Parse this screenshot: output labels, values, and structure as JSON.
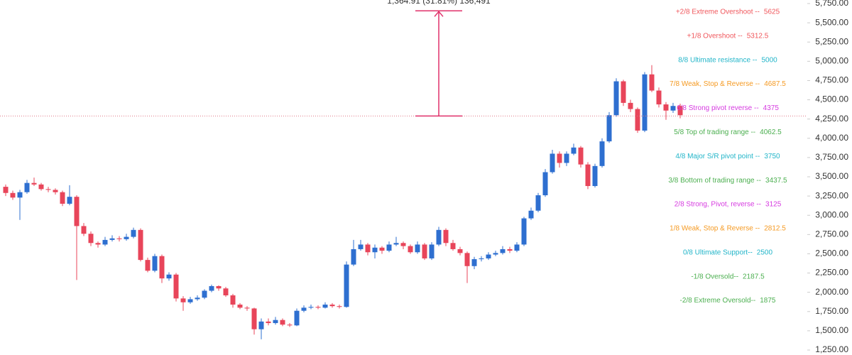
{
  "chart_data": {
    "type": "candlestick",
    "up_color": "#2e6fd0",
    "down_color": "#e8455a",
    "ylim": [
      1250,
      5750
    ],
    "yticks": [
      {
        "value": 1250,
        "label": "1,250.00"
      },
      {
        "value": 1500,
        "label": "1,500.00"
      },
      {
        "value": 1750,
        "label": "1,750.00"
      },
      {
        "value": 2000,
        "label": "2,000.00"
      },
      {
        "value": 2250,
        "label": "2,250.00"
      },
      {
        "value": 2500,
        "label": "2,500.00"
      },
      {
        "value": 2750,
        "label": "2,750.00"
      },
      {
        "value": 3000,
        "label": "3,000.00"
      },
      {
        "value": 3250,
        "label": "3,250.00"
      },
      {
        "value": 3500,
        "label": "3,500.00"
      },
      {
        "value": 3750,
        "label": "3,750.00"
      },
      {
        "value": 4000,
        "label": "4,000.00"
      },
      {
        "value": 4250,
        "label": "4,250.00"
      },
      {
        "value": 4500,
        "label": "4,500.00"
      },
      {
        "value": 4750,
        "label": "4,750.00"
      },
      {
        "value": 5000,
        "label": "5,000.00"
      },
      {
        "value": 5250,
        "label": "5,250.00"
      },
      {
        "value": 5500,
        "label": "5,500.00"
      },
      {
        "value": 5750,
        "label": "5,750.00"
      }
    ],
    "candles": [
      [
        3370,
        3400,
        3250,
        3290
      ],
      [
        3290,
        3320,
        3200,
        3230
      ],
      [
        3230,
        3330,
        2940,
        3300
      ],
      [
        3300,
        3460,
        3280,
        3420
      ],
      [
        3420,
        3490,
        3380,
        3400
      ],
      [
        3400,
        3420,
        3320,
        3340
      ],
      [
        3340,
        3370,
        3300,
        3330
      ],
      [
        3330,
        3350,
        3270,
        3300
      ],
      [
        3300,
        3320,
        3120,
        3150
      ],
      [
        3150,
        3390,
        3130,
        3240
      ],
      [
        3240,
        3260,
        2160,
        2860
      ],
      [
        2860,
        2900,
        2730,
        2760
      ],
      [
        2760,
        2790,
        2600,
        2640
      ],
      [
        2640,
        2660,
        2580,
        2620
      ],
      [
        2620,
        2720,
        2600,
        2680
      ],
      [
        2680,
        2740,
        2660,
        2700
      ],
      [
        2700,
        2730,
        2660,
        2690
      ],
      [
        2690,
        2760,
        2670,
        2720
      ],
      [
        2720,
        2840,
        2700,
        2810
      ],
      [
        2810,
        2830,
        2400,
        2420
      ],
      [
        2420,
        2450,
        2260,
        2280
      ],
      [
        2280,
        2500,
        2260,
        2470
      ],
      [
        2470,
        2490,
        2120,
        2180
      ],
      [
        2180,
        2260,
        2150,
        2230
      ],
      [
        2230,
        2250,
        1880,
        1920
      ],
      [
        1920,
        1950,
        1760,
        1870
      ],
      [
        1870,
        1940,
        1850,
        1910
      ],
      [
        1910,
        1960,
        1890,
        1930
      ],
      [
        1930,
        2040,
        1910,
        2020
      ],
      [
        2020,
        2100,
        2000,
        2080
      ],
      [
        2080,
        2090,
        2020,
        2050
      ],
      [
        2050,
        2070,
        1940,
        1960
      ],
      [
        1960,
        1980,
        1800,
        1840
      ],
      [
        1840,
        1860,
        1780,
        1800
      ],
      [
        1800,
        1820,
        1760,
        1790
      ],
      [
        1790,
        1800,
        1450,
        1520
      ],
      [
        1520,
        1660,
        1390,
        1620
      ],
      [
        1620,
        1660,
        1570,
        1600
      ],
      [
        1600,
        1680,
        1580,
        1640
      ],
      [
        1640,
        1660,
        1560,
        1580
      ],
      [
        1580,
        1600,
        1550,
        1570
      ],
      [
        1570,
        1790,
        1560,
        1760
      ],
      [
        1760,
        1830,
        1740,
        1800
      ],
      [
        1800,
        1840,
        1780,
        1810
      ],
      [
        1810,
        1830,
        1780,
        1800
      ],
      [
        1800,
        1870,
        1790,
        1840
      ],
      [
        1840,
        1860,
        1800,
        1820
      ],
      [
        1820,
        1840,
        1790,
        1810
      ],
      [
        1810,
        2400,
        1800,
        2360
      ],
      [
        2360,
        2680,
        2340,
        2560
      ],
      [
        2560,
        2680,
        2540,
        2620
      ],
      [
        2620,
        2640,
        2480,
        2520
      ],
      [
        2520,
        2620,
        2440,
        2580
      ],
      [
        2580,
        2600,
        2500,
        2540
      ],
      [
        2540,
        2660,
        2520,
        2620
      ],
      [
        2620,
        2720,
        2600,
        2640
      ],
      [
        2640,
        2660,
        2560,
        2600
      ],
      [
        2600,
        2620,
        2500,
        2520
      ],
      [
        2520,
        2660,
        2500,
        2620
      ],
      [
        2620,
        2640,
        2420,
        2440
      ],
      [
        2440,
        2650,
        2420,
        2620
      ],
      [
        2620,
        2850,
        2600,
        2810
      ],
      [
        2810,
        2830,
        2600,
        2640
      ],
      [
        2640,
        2680,
        2540,
        2560
      ],
      [
        2560,
        2590,
        2480,
        2510
      ],
      [
        2510,
        2530,
        2120,
        2340
      ],
      [
        2340,
        2460,
        2300,
        2430
      ],
      [
        2430,
        2470,
        2400,
        2440
      ],
      [
        2440,
        2520,
        2420,
        2490
      ],
      [
        2490,
        2540,
        2470,
        2510
      ],
      [
        2510,
        2600,
        2490,
        2560
      ],
      [
        2560,
        2590,
        2510,
        2540
      ],
      [
        2540,
        2650,
        2520,
        2620
      ],
      [
        2620,
        2980,
        2600,
        2960
      ],
      [
        2960,
        3100,
        2940,
        3060
      ],
      [
        3060,
        3290,
        3040,
        3260
      ],
      [
        3260,
        3600,
        3240,
        3560
      ],
      [
        3560,
        3850,
        3540,
        3800
      ],
      [
        3800,
        3830,
        3620,
        3680
      ],
      [
        3680,
        3830,
        3640,
        3800
      ],
      [
        3800,
        3930,
        3780,
        3880
      ],
      [
        3880,
        3900,
        3620,
        3660
      ],
      [
        3660,
        3690,
        3340,
        3380
      ],
      [
        3380,
        3670,
        3360,
        3640
      ],
      [
        3640,
        4000,
        3620,
        3960
      ],
      [
        3960,
        4340,
        3940,
        4300
      ],
      [
        4300,
        4780,
        4280,
        4740
      ],
      [
        4740,
        4760,
        4420,
        4460
      ],
      [
        4460,
        4500,
        4340,
        4380
      ],
      [
        4380,
        4400,
        4070,
        4100
      ],
      [
        4100,
        4860,
        4080,
        4830
      ],
      [
        4830,
        4950,
        4600,
        4620
      ],
      [
        4620,
        4660,
        4400,
        4440
      ],
      [
        4440,
        4470,
        4240,
        4360
      ],
      [
        4360,
        4460,
        4330,
        4420
      ],
      [
        4420,
        4450,
        4260,
        4300
      ]
    ],
    "price_line": 4290,
    "price_line_color": "#e07a86",
    "measure": {
      "from": 4290,
      "to": 5655,
      "label": "1,364.91 (31.81%) 136,491",
      "color": "#e0306a"
    },
    "levels": [
      {
        "label": "+2/8 Extreme Overshoot --",
        "value": 5625,
        "color": "#f0575c"
      },
      {
        "label": "+1/8 Overshoot --",
        "value": 5312.5,
        "color": "#f0575c"
      },
      {
        "label": "8/8 Ultimate resistance --",
        "value": 5000,
        "color": "#22b5c9"
      },
      {
        "label": "7/8 Weak, Stop & Reverse --",
        "value": 4687.5,
        "color": "#f59a23"
      },
      {
        "label": "6/8 Strong pivot reverse --",
        "value": 4375,
        "color": "#d63ae0"
      },
      {
        "label": "5/8 Top of trading range --",
        "value": 4062.5,
        "color": "#4caf50"
      },
      {
        "label": "4/8 Major S/R pivot point --",
        "value": 3750,
        "color": "#22b5c9"
      },
      {
        "label": "3/8 Bottom of trading range --",
        "value": 3437.5,
        "color": "#4caf50"
      },
      {
        "label": "2/8 Strong, Pivot, reverse --",
        "value": 3125,
        "color": "#d63ae0"
      },
      {
        "label": "1/8 Weak, Stop & Reverse --",
        "value": 2812.5,
        "color": "#f59a23"
      },
      {
        "label": "0/8 Ultimate Support--",
        "value": 2500,
        "color": "#22b5c9"
      },
      {
        "label": "-1/8 Oversold--",
        "value": 2187.5,
        "color": "#4caf50"
      },
      {
        "label": "-2/8 Extreme Oversold--",
        "value": 1875,
        "color": "#4caf50"
      }
    ]
  }
}
